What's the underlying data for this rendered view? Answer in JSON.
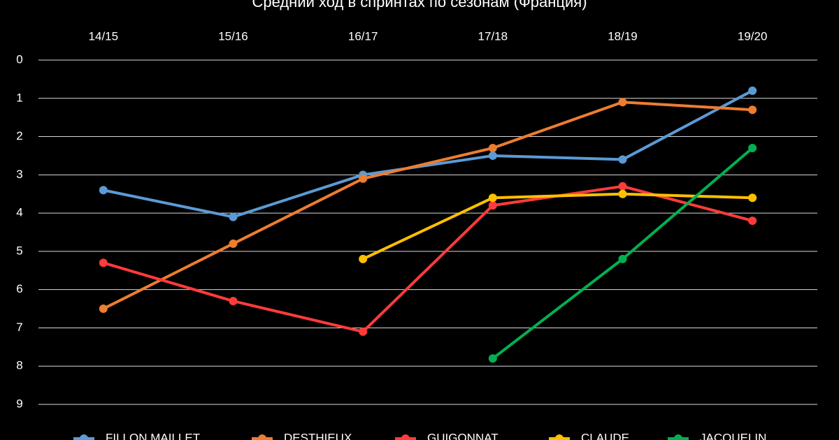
{
  "chart_data": {
    "type": "line",
    "title": "Средний ход в спринтах по сезонам (Франция)",
    "categories": [
      "14/15",
      "15/16",
      "16/17",
      "17/18",
      "18/19",
      "19/20"
    ],
    "series": [
      {
        "name": "FILLON MAILLET",
        "color": "#5b9bd5",
        "values": [
          3.4,
          4.1,
          3.0,
          2.5,
          2.6,
          0.8
        ]
      },
      {
        "name": "DESTHIEUX",
        "color": "#ed7d31",
        "values": [
          6.5,
          4.8,
          3.1,
          2.3,
          1.1,
          1.3
        ]
      },
      {
        "name": "GUIGONNAT",
        "color": "#ff3b3b",
        "values": [
          5.3,
          6.3,
          7.1,
          3.8,
          3.3,
          4.2
        ]
      },
      {
        "name": "CLAUDE",
        "color": "#ffc000",
        "values": [
          null,
          null,
          5.2,
          3.6,
          3.5,
          3.6
        ]
      },
      {
        "name": "JACQUELIN",
        "color": "#00b050",
        "values": [
          null,
          null,
          null,
          7.8,
          5.2,
          2.3
        ]
      }
    ],
    "ylim": [
      0,
      9
    ],
    "yticks": [
      0,
      1,
      2,
      3,
      4,
      5,
      6,
      7,
      8,
      9
    ],
    "y_inverted": true,
    "grid": true,
    "legend": "bottom"
  }
}
